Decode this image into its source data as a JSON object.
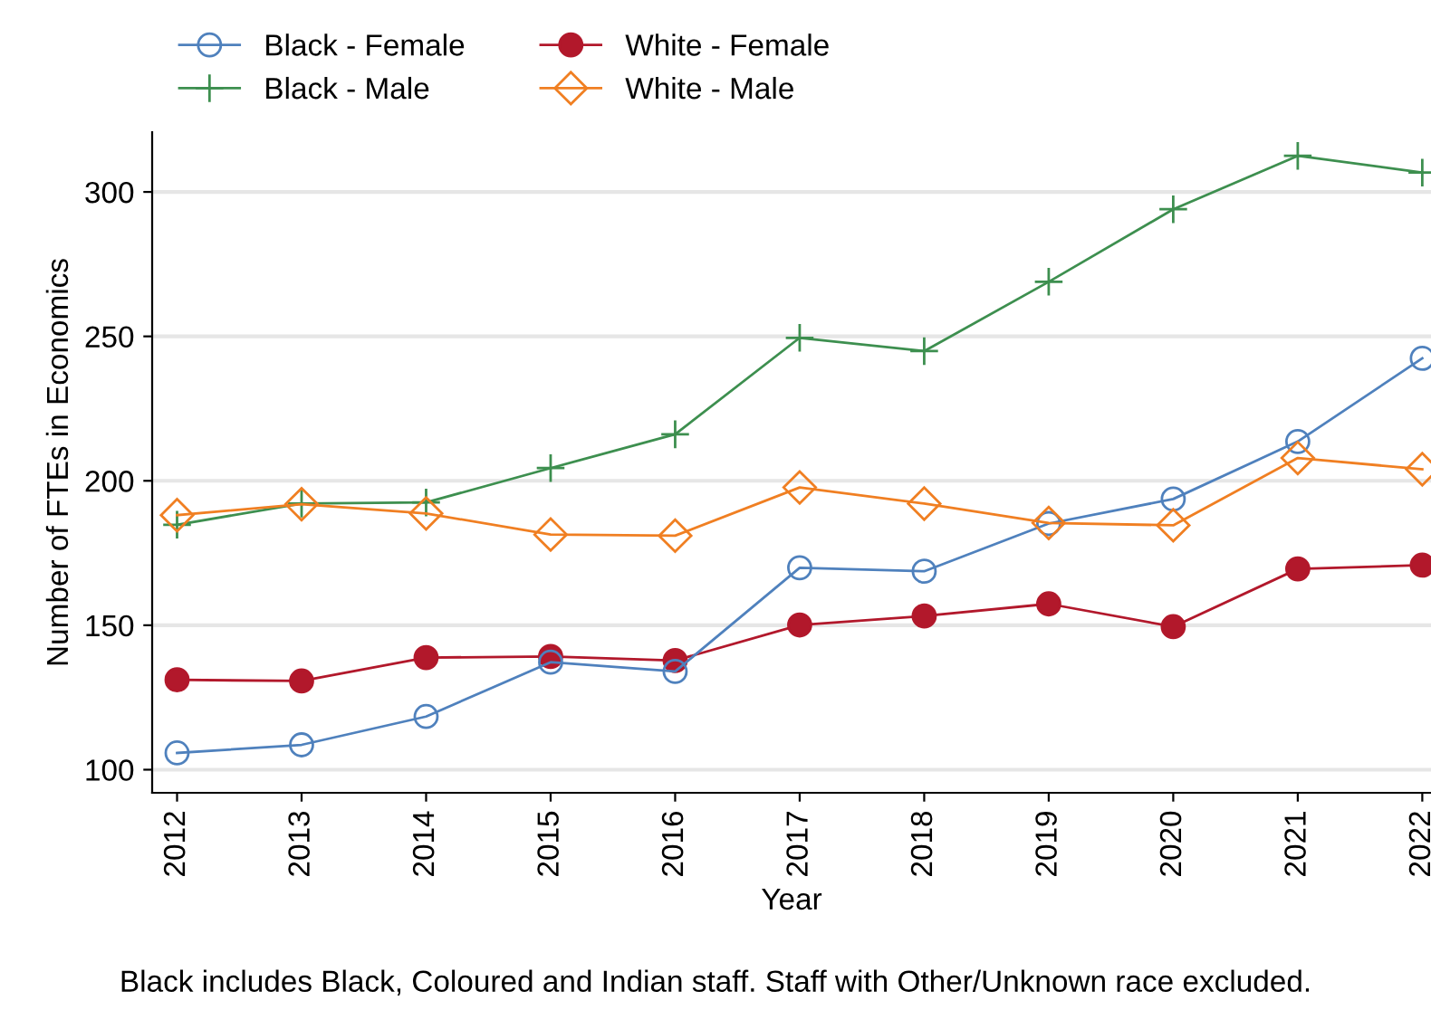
{
  "chart_data": {
    "type": "line",
    "xlabel": "Year",
    "ylabel": "Number of FTEs in Economics",
    "x": [
      2012,
      2013,
      2014,
      2015,
      2016,
      2017,
      2018,
      2019,
      2020,
      2021,
      2022
    ],
    "xlim": [
      2011.8,
      2022.07
    ],
    "xticks": [
      2012,
      2013,
      2014,
      2015,
      2016,
      2017,
      2018,
      2019,
      2020,
      2021,
      2022
    ],
    "ylim": [
      92,
      320.7
    ],
    "yticks": [
      100,
      150,
      200,
      250,
      300
    ],
    "grid": "y",
    "legend": "top",
    "series": [
      {
        "name": "Black - Female",
        "color": "#4f81bd",
        "marker": "circle",
        "values": [
          105.8,
          108.6,
          118.4,
          137.2,
          134.0,
          169.9,
          168.7,
          185.2,
          193.7,
          213.6,
          242.4
        ]
      },
      {
        "name": "Black - Male",
        "color": "#3d8f4f",
        "marker": "cross",
        "values": [
          184.8,
          192.1,
          192.5,
          204.4,
          216.1,
          249.5,
          244.9,
          268.9,
          294.0,
          312.5,
          306.7
        ]
      },
      {
        "name": "White - Female",
        "color": "#b2182b",
        "marker": "circle_filled",
        "values": [
          131.1,
          130.7,
          138.8,
          139.2,
          137.8,
          150.1,
          153.2,
          157.4,
          149.5,
          169.5,
          170.8
        ]
      },
      {
        "name": "White - Male",
        "color": "#f07f22",
        "marker": "diamond",
        "values": [
          188.1,
          191.9,
          188.7,
          181.4,
          181.0,
          197.7,
          192.1,
          185.4,
          184.6,
          207.9,
          204.0
        ]
      }
    ],
    "annotations": [
      "Black includes Black, Coloured and Indian staff. Staff with Other/Unknown race excluded."
    ]
  }
}
